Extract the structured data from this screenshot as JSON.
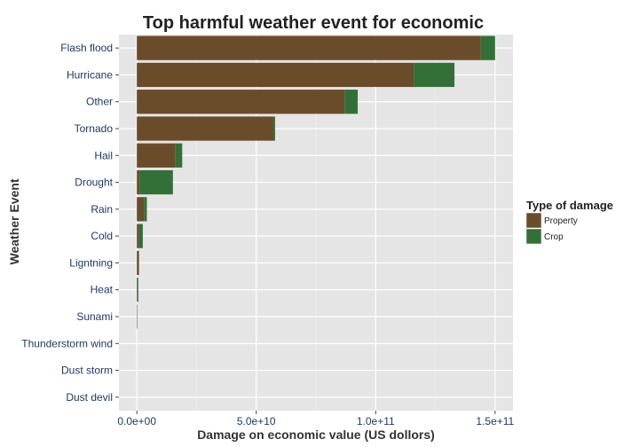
{
  "chart_data": {
    "type": "bar",
    "orientation": "horizontal",
    "stacked": true,
    "title": "Top harmful weather event for economic",
    "xlabel": "Damage on economic value (US dollors)",
    "ylabel": "Weather Event",
    "categories": [
      "Flash flood",
      "Hurricane",
      "Other",
      "Tornado",
      "Hail",
      "Drought",
      "Rain",
      "Cold",
      "Ligntning",
      "Heat",
      "Sunami",
      "Thunderstorm wind",
      "Dust storm",
      "Dust devil"
    ],
    "series": [
      {
        "name": "Property",
        "color": "#6b4c2a",
        "values": [
          144000000000.0,
          116000000000.0,
          87000000000.0,
          57500000000.0,
          16000000000.0,
          1100000000.0,
          3000000000.0,
          1000000000.0,
          900000000.0,
          10000000.0,
          200000000.0,
          10000000.0,
          5000000.0,
          1000000.0
        ]
      },
      {
        "name": "Crop",
        "color": "#337038",
        "values": [
          6000000000.0,
          17000000000.0,
          5500000000.0,
          400000000.0,
          3000000000.0,
          14000000000.0,
          1200000000.0,
          1500000000.0,
          10000000.0,
          600000000.0,
          1000000.0,
          1000000.0,
          1000000.0,
          1000000.0
        ]
      }
    ],
    "xlim": [
      -7500000000.0,
      157500000000.0
    ],
    "xticks": [
      0,
      50000000000.0,
      100000000000.0,
      150000000000.0
    ],
    "xtick_labels": [
      "0.0e+00",
      "5.0e+10",
      "1.0e+11",
      "1.5e+11"
    ],
    "grid": true,
    "legend_title": "Type of damage",
    "legend_position": "right"
  }
}
